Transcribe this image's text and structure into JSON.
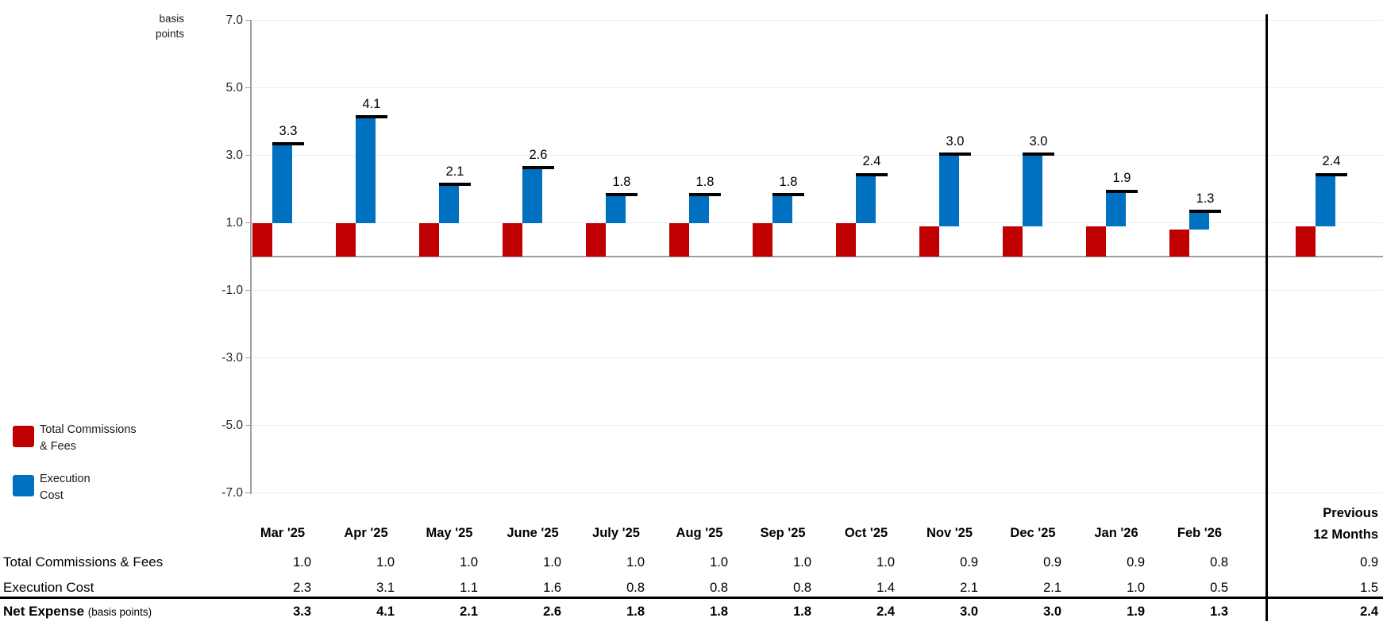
{
  "title": {
    "axis_unit_line1": "basis",
    "axis_unit_line2": "points"
  },
  "chart_data": {
    "type": "bar",
    "stacked": true,
    "grid": true,
    "ylabel": "basis points",
    "ylim": [
      -7.0,
      7.0
    ],
    "y_ticks": [
      7.0,
      5.0,
      3.0,
      1.0,
      -1.0,
      -3.0,
      -5.0,
      -7.0
    ],
    "legend_position": "bottom-left",
    "categories": [
      "Mar '25",
      "Apr '25",
      "May '25",
      "June '25",
      "July '25",
      "Aug '25",
      "Sep '25",
      "Oct '25",
      "Nov '25",
      "Dec '25",
      "Jan '26",
      "Feb '26"
    ],
    "summary_category": "Previous 12 Months",
    "series": [
      {
        "name": "Total Commissions & Fees",
        "color": "#C00000",
        "values": [
          1.0,
          1.0,
          1.0,
          1.0,
          1.0,
          1.0,
          1.0,
          1.0,
          0.9,
          0.9,
          0.9,
          0.8
        ],
        "summary_value": 0.9
      },
      {
        "name": "Execution Cost",
        "color": "#0070C0",
        "values": [
          2.3,
          3.1,
          1.1,
          1.6,
          0.8,
          0.8,
          0.8,
          1.4,
          2.1,
          2.1,
          1.0,
          0.5
        ],
        "summary_value": 1.5
      },
      {
        "name": "Net Expense",
        "marker": "total-dash",
        "color": "#000000",
        "values": [
          3.3,
          4.1,
          2.1,
          2.6,
          1.8,
          1.8,
          1.8,
          2.4,
          3.0,
          3.0,
          1.9,
          1.3
        ],
        "summary_value": 2.4
      }
    ]
  },
  "legend": {
    "items": [
      {
        "lines": [
          "Total Commissions",
          "& Fees"
        ],
        "color": "#C00000"
      },
      {
        "lines": [
          "Execution",
          "Cost"
        ],
        "color": "#0070C0"
      }
    ]
  },
  "table": {
    "summary_header_lines": [
      "Previous",
      "12 Months"
    ],
    "rows": [
      {
        "label": "Total Commissions & Fees",
        "bold": false
      },
      {
        "label": "Execution Cost",
        "bold": false
      },
      {
        "label": "Net Expense",
        "label_note": "(basis points)",
        "bold": true
      }
    ]
  },
  "colors": {
    "commissions_red": "#C00000",
    "execution_blue": "#0070C0",
    "net_marker_black": "#000000",
    "axis_gray": "#9E9E9E",
    "gridline": "#E6EDF3"
  }
}
